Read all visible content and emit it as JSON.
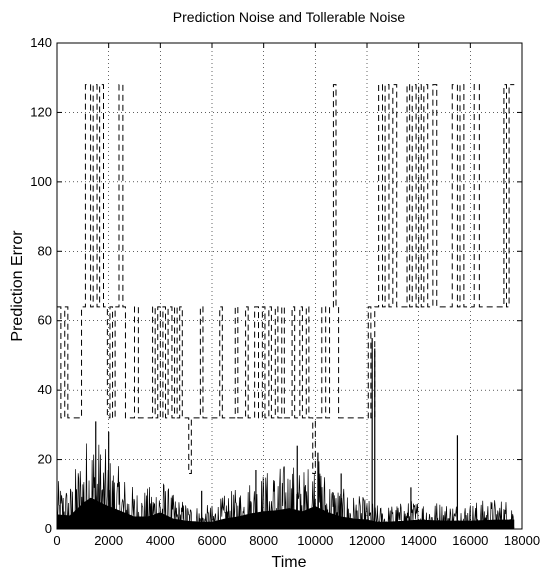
{
  "chart_data": {
    "type": "line",
    "title": "Prediction Noise and Tollerable Noise",
    "xlabel": "Time",
    "ylabel": "Prediction Error",
    "xlim": [
      0,
      18000
    ],
    "ylim": [
      0,
      140
    ],
    "xticks": [
      0,
      2000,
      4000,
      6000,
      8000,
      10000,
      12000,
      14000,
      16000,
      18000
    ],
    "yticks": [
      0,
      20,
      40,
      60,
      80,
      100,
      120,
      140
    ],
    "x_tick_labels": [
      "0",
      "2000",
      "4000",
      "6000",
      "8000",
      "10000",
      "12000",
      "14000",
      "16000",
      "18000"
    ],
    "y_tick_labels": [
      "0",
      "20",
      "40",
      "60",
      "80",
      "100",
      "120",
      "140"
    ],
    "grid": true,
    "series": [
      {
        "style": "dashed",
        "color": "#000000",
        "step": true,
        "points": [
          [
            0,
            64
          ],
          [
            150,
            32
          ],
          [
            300,
            64
          ],
          [
            420,
            32
          ],
          [
            950,
            64
          ],
          [
            1100,
            128
          ],
          [
            1300,
            64
          ],
          [
            1400,
            128
          ],
          [
            1550,
            64
          ],
          [
            1650,
            128
          ],
          [
            1800,
            64
          ],
          [
            1950,
            32
          ],
          [
            2050,
            64
          ],
          [
            2150,
            32
          ],
          [
            2250,
            64
          ],
          [
            2400,
            128
          ],
          [
            2550,
            64
          ],
          [
            2650,
            32
          ],
          [
            3000,
            64
          ],
          [
            3150,
            32
          ],
          [
            3700,
            64
          ],
          [
            3800,
            32
          ],
          [
            3900,
            64
          ],
          [
            4000,
            32
          ],
          [
            4100,
            64
          ],
          [
            4200,
            32
          ],
          [
            4300,
            64
          ],
          [
            4450,
            32
          ],
          [
            4550,
            64
          ],
          [
            4650,
            32
          ],
          [
            4750,
            64
          ],
          [
            4850,
            32
          ],
          [
            5100,
            16
          ],
          [
            5200,
            32
          ],
          [
            5550,
            64
          ],
          [
            5650,
            32
          ],
          [
            6300,
            64
          ],
          [
            6400,
            32
          ],
          [
            6900,
            64
          ],
          [
            7000,
            32
          ],
          [
            7300,
            64
          ],
          [
            7400,
            32
          ],
          [
            7650,
            64
          ],
          [
            7800,
            32
          ],
          [
            7950,
            64
          ],
          [
            8050,
            32
          ],
          [
            8200,
            64
          ],
          [
            8300,
            32
          ],
          [
            8450,
            64
          ],
          [
            8550,
            32
          ],
          [
            8700,
            64
          ],
          [
            8800,
            32
          ],
          [
            9100,
            64
          ],
          [
            9200,
            32
          ],
          [
            9400,
            64
          ],
          [
            9500,
            32
          ],
          [
            9650,
            64
          ],
          [
            9750,
            32
          ],
          [
            9900,
            16
          ],
          [
            10000,
            32
          ],
          [
            10250,
            64
          ],
          [
            10400,
            32
          ],
          [
            10550,
            64
          ],
          [
            10700,
            128
          ],
          [
            10800,
            64
          ],
          [
            10900,
            32
          ],
          [
            12050,
            64
          ],
          [
            12150,
            32
          ],
          [
            12300,
            64
          ],
          [
            12450,
            128
          ],
          [
            12600,
            64
          ],
          [
            12700,
            128
          ],
          [
            12850,
            64
          ],
          [
            13000,
            128
          ],
          [
            13150,
            64
          ],
          [
            13550,
            128
          ],
          [
            13650,
            64
          ],
          [
            13750,
            128
          ],
          [
            13900,
            64
          ],
          [
            14000,
            128
          ],
          [
            14100,
            64
          ],
          [
            14200,
            128
          ],
          [
            14350,
            64
          ],
          [
            14550,
            128
          ],
          [
            14700,
            64
          ],
          [
            15300,
            128
          ],
          [
            15500,
            64
          ],
          [
            15600,
            128
          ],
          [
            15750,
            64
          ],
          [
            16150,
            128
          ],
          [
            16350,
            64
          ],
          [
            17300,
            128
          ],
          [
            17400,
            64
          ],
          [
            17500,
            128
          ],
          [
            17700,
            128
          ]
        ]
      },
      {
        "style": "solid",
        "color": "#000000",
        "type": "noise",
        "envelope": [
          [
            0,
            14
          ],
          [
            500,
            13
          ],
          [
            800,
            20
          ],
          [
            1000,
            25
          ],
          [
            1300,
            30
          ],
          [
            1500,
            28
          ],
          [
            1800,
            24
          ],
          [
            2200,
            20
          ],
          [
            2500,
            17
          ],
          [
            3000,
            12
          ],
          [
            3500,
            12
          ],
          [
            4000,
            16
          ],
          [
            4500,
            10
          ],
          [
            5000,
            8
          ],
          [
            5500,
            7
          ],
          [
            6000,
            7
          ],
          [
            6500,
            10
          ],
          [
            7000,
            12
          ],
          [
            7500,
            15
          ],
          [
            8000,
            17
          ],
          [
            8500,
            18
          ],
          [
            9000,
            20
          ],
          [
            9500,
            17
          ],
          [
            10000,
            22
          ],
          [
            10500,
            16
          ],
          [
            11000,
            12
          ],
          [
            11500,
            10
          ],
          [
            12000,
            9
          ],
          [
            12400,
            7
          ],
          [
            12800,
            7
          ],
          [
            13500,
            8
          ],
          [
            14000,
            9
          ],
          [
            15000,
            8
          ],
          [
            16000,
            8
          ],
          [
            17000,
            9
          ],
          [
            17700,
            9
          ]
        ],
        "spikes": [
          [
            12200,
            55
          ],
          [
            12300,
            52
          ],
          [
            15500,
            27
          ],
          [
            13700,
            12
          ],
          [
            1500,
            31
          ],
          [
            2000,
            28
          ],
          [
            9300,
            24
          ],
          [
            10100,
            22
          ],
          [
            11000,
            16
          ],
          [
            5600,
            11
          ],
          [
            7700,
            17
          ]
        ]
      }
    ]
  }
}
